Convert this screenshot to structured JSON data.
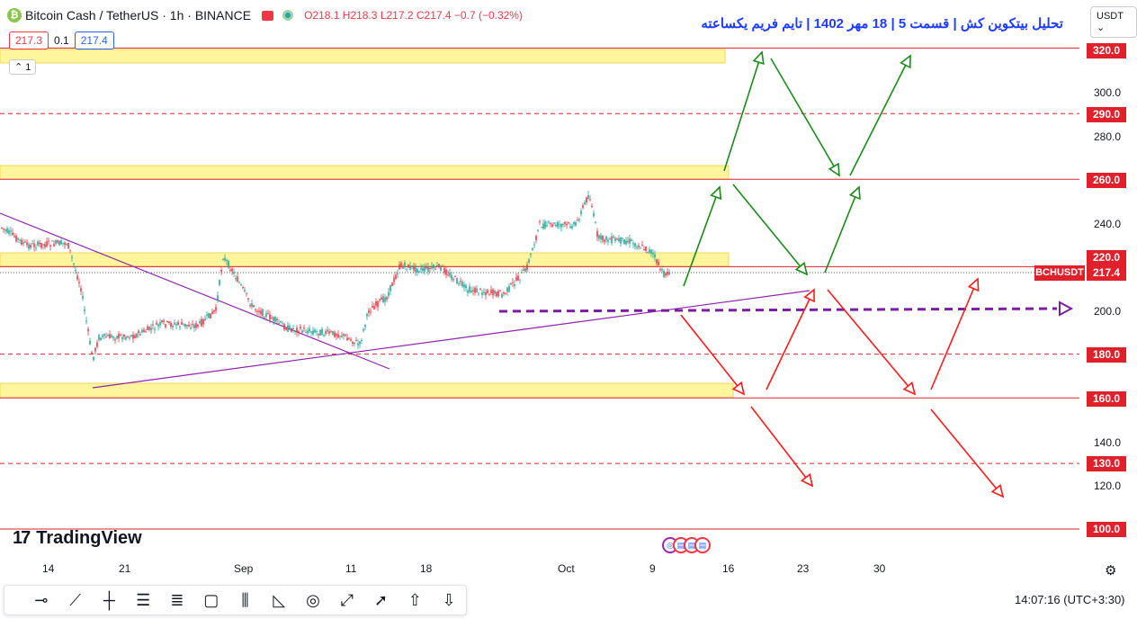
{
  "header": {
    "symbol": "Bitcoin Cash / TetherUS · 1h · BINANCE",
    "open": "O218.1",
    "high": "H218.3",
    "low": "L217.2",
    "close": "C217.4",
    "change": "−0.7 (−0.32%)"
  },
  "quote": {
    "sell": "217.3",
    "spread": "0.1",
    "buy": "217.4"
  },
  "collapse_label": "1",
  "title": "تحلیل بیتکوین کش | قسمت 5 | 18 مهر 1402 | تایم فریم یکساعته",
  "currency": "USDT",
  "price_axis": {
    "plain_labels": [
      "300.0",
      "280.0",
      "240.0",
      "200.0",
      "140.0",
      "120.0"
    ],
    "tag_labels": [
      "320.0",
      "290.0",
      "260.0",
      "220.0",
      "180.0",
      "160.0",
      "130.0",
      "100.0"
    ],
    "last_price": "217.4",
    "symbol_tag": "BCHUSDT"
  },
  "time_axis": [
    "14",
    "21",
    "Sep",
    "11",
    "18",
    "Oct",
    "9",
    "16",
    "23",
    "30"
  ],
  "brand": "TradingView",
  "clock": "14:07:16",
  "timezone": "(UTC+3:30)",
  "toolbar_icons": [
    "horizontal-ray-icon",
    "trend-line-icon",
    "vertical-line-icon",
    "parallel-channel-icon",
    "fib-retracement-icon",
    "rectangle-icon",
    "pitchfork-icon",
    "triangle-pattern-icon",
    "circle-icon",
    "brush-icon",
    "arrow-icon",
    "arrow-up-icon",
    "arrow-down-icon"
  ],
  "colors": {
    "up": "#26a69a",
    "down": "#f23645",
    "zone": "#fff59d",
    "level": "#e0202a",
    "bull_path": "#1a8a1a",
    "bear_path": "#ff1a1a",
    "support": "#8e24aa"
  }
}
